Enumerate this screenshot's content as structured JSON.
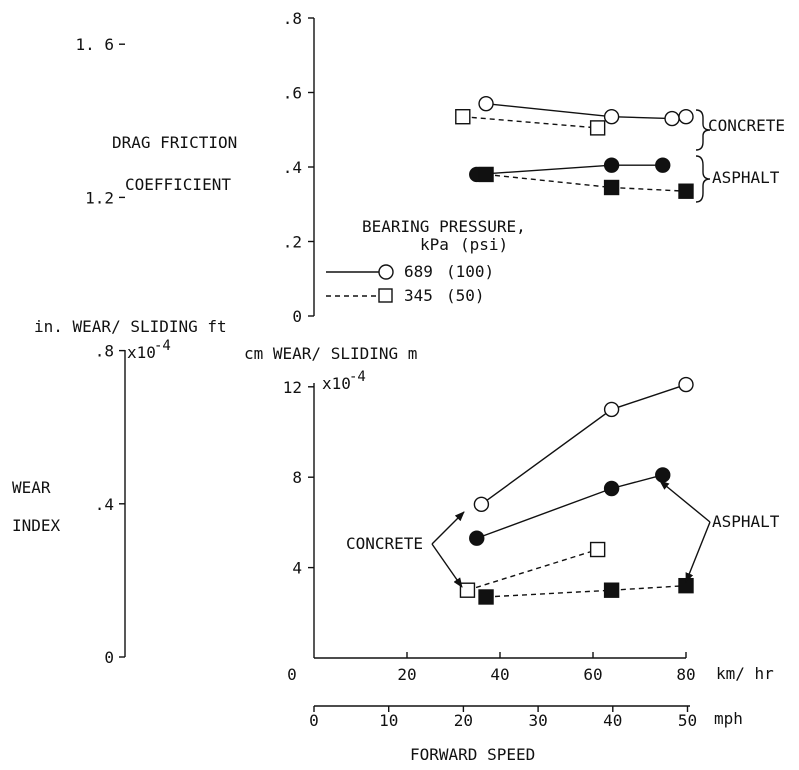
{
  "chart_data": [
    {
      "type": "line",
      "ylabel_lines": [
        "DRAG FRICTION",
        "COEFFICIENT"
      ],
      "y_ticks": [
        ".8",
        ".6",
        ".4",
        ".2",
        "0"
      ],
      "ylim": [
        0,
        0.8
      ],
      "xlim_kmh": [
        0,
        80
      ],
      "series": [
        {
          "surface": "CONCRETE",
          "pressure_kpa": 689,
          "marker": "open-circle",
          "line": "solid",
          "x": [
            37,
            64,
            77,
            80
          ],
          "y": [
            0.57,
            0.535,
            0.53,
            0.535
          ]
        },
        {
          "surface": "CONCRETE",
          "pressure_kpa": 345,
          "marker": "open-square",
          "line": "dashed",
          "x": [
            32,
            61
          ],
          "y": [
            0.535,
            0.505
          ]
        },
        {
          "surface": "ASPHALT",
          "pressure_kpa": 689,
          "marker": "filled-circle",
          "line": "solid",
          "x": [
            35,
            64,
            75
          ],
          "y": [
            0.38,
            0.405,
            0.405
          ]
        },
        {
          "surface": "ASPHALT",
          "pressure_kpa": 345,
          "marker": "filled-square",
          "line": "dashed",
          "x": [
            37,
            64,
            80
          ],
          "y": [
            0.38,
            0.345,
            0.335
          ]
        }
      ],
      "annotations": [
        "CONCRETE",
        "ASPHALT"
      ],
      "legend": {
        "title": "BEARING PRESSURE,",
        "head_kpa": "kPa",
        "head_psi": "(psi)",
        "entries": [
          {
            "kpa": "689",
            "psi": "(100)",
            "marker": "open-circle",
            "line": "solid"
          },
          {
            "kpa": "345",
            "psi": "(50)",
            "marker": "open-square",
            "line": "dashed"
          }
        ]
      }
    },
    {
      "type": "line",
      "ylabel_lines": [
        "WEAR",
        "INDEX"
      ],
      "left_axis": {
        "label": "in. WEAR/ SLIDING ft",
        "exponent": "x10",
        "exponent_power": "-4",
        "ticks": [
          "1. 6",
          "1.2",
          ".8",
          ".4",
          "0"
        ],
        "ylim": [
          0,
          1.6
        ]
      },
      "right_axis": {
        "label": "cm WEAR/ SLIDING m",
        "exponent": "x10",
        "exponent_power": "-4",
        "ticks": [
          "12",
          "8",
          "4"
        ],
        "ylim": [
          0,
          13.3
        ]
      },
      "series": [
        {
          "surface": "CONCRETE",
          "pressure_kpa": 689,
          "marker": "open-circle",
          "line": "solid",
          "x": [
            36,
            64,
            80
          ],
          "y": [
            6.8,
            11.0,
            12.1
          ]
        },
        {
          "surface": "CONCRETE",
          "pressure_kpa": 345,
          "marker": "open-square",
          "line": "dashed",
          "x": [
            33,
            61
          ],
          "y": [
            3.0,
            4.8
          ]
        },
        {
          "surface": "ASPHALT",
          "pressure_kpa": 689,
          "marker": "filled-circle",
          "line": "solid",
          "x": [
            35,
            64,
            75
          ],
          "y": [
            5.3,
            7.5,
            8.1
          ]
        },
        {
          "surface": "ASPHALT",
          "pressure_kpa": 345,
          "marker": "filled-square",
          "line": "dashed",
          "x": [
            37,
            64,
            80
          ],
          "y": [
            2.7,
            3.0,
            3.2
          ]
        }
      ],
      "annotations": [
        "CONCRETE",
        "ASPHALT"
      ]
    }
  ],
  "x_axis": {
    "kmh_ticks": [
      "0",
      "20",
      "40",
      "60",
      "80"
    ],
    "kmh_unit": "km/ hr",
    "mph_ticks": [
      "0",
      "10",
      "20",
      "30",
      "40",
      "50"
    ],
    "mph_unit": "mph",
    "label": "FORWARD SPEED"
  }
}
